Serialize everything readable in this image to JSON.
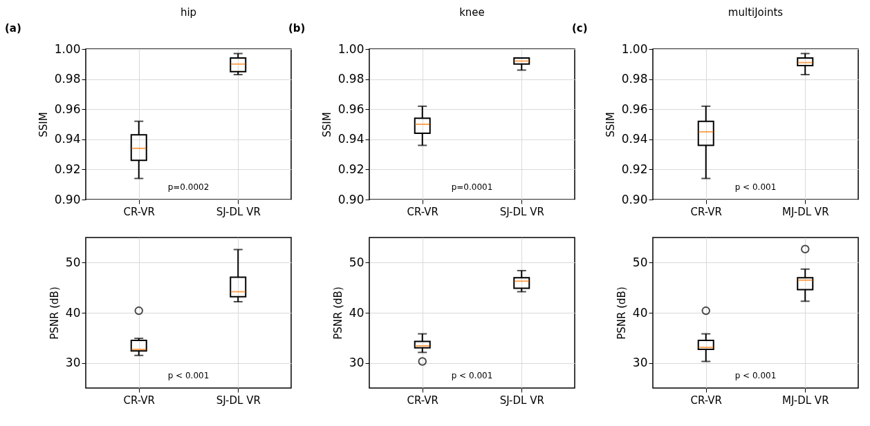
{
  "chart_data": [
    {
      "type": "box",
      "title": "hip",
      "ylabel": "SSIM",
      "categories": [
        "CR-VR",
        "SJ-DL VR"
      ],
      "ylim": [
        0.9,
        1.0
      ],
      "yticks": [
        {
          "value": 0.9,
          "label": "0.90"
        },
        {
          "value": 0.92,
          "label": "0.92"
        },
        {
          "value": 0.94,
          "label": "0.94"
        },
        {
          "value": 0.96,
          "label": "0.96"
        },
        {
          "value": 0.98,
          "label": "0.98"
        },
        {
          "value": 1.0,
          "label": "1.00"
        }
      ],
      "grid": true,
      "boxes": [
        {
          "low": 0.914,
          "q1": 0.926,
          "median": 0.934,
          "q3": 0.943,
          "high": 0.952
        },
        {
          "low": 0.983,
          "q1": 0.985,
          "median": 0.99,
          "q3": 0.994,
          "high": 0.997
        }
      ],
      "annotations": [
        "(a)",
        "p=0.0002"
      ]
    },
    {
      "type": "box",
      "title": "knee",
      "ylabel": "SSIM",
      "categories": [
        "CR-VR",
        "SJ-DL VR"
      ],
      "ylim": [
        0.9,
        1.0
      ],
      "yticks": [
        {
          "value": 0.9,
          "label": "0.90"
        },
        {
          "value": 0.92,
          "label": "0.92"
        },
        {
          "value": 0.94,
          "label": "0.94"
        },
        {
          "value": 0.96,
          "label": "0.96"
        },
        {
          "value": 0.98,
          "label": "0.98"
        },
        {
          "value": 1.0,
          "label": "1.00"
        }
      ],
      "grid": true,
      "boxes": [
        {
          "low": 0.936,
          "q1": 0.944,
          "median": 0.95,
          "q3": 0.954,
          "high": 0.962
        },
        {
          "low": 0.986,
          "q1": 0.99,
          "median": 0.992,
          "q3": 0.994,
          "high": 0.994
        }
      ],
      "annotations": [
        "(b)",
        "p=0.0001"
      ]
    },
    {
      "type": "box",
      "title": "multiJoints",
      "ylabel": "SSIM",
      "categories": [
        "CR-VR",
        "MJ-DL VR"
      ],
      "ylim": [
        0.9,
        1.0
      ],
      "yticks": [
        {
          "value": 0.9,
          "label": "0.90"
        },
        {
          "value": 0.92,
          "label": "0.92"
        },
        {
          "value": 0.94,
          "label": "0.94"
        },
        {
          "value": 0.96,
          "label": "0.96"
        },
        {
          "value": 0.98,
          "label": "0.98"
        },
        {
          "value": 1.0,
          "label": "1.00"
        }
      ],
      "grid": true,
      "boxes": [
        {
          "low": 0.914,
          "q1": 0.936,
          "median": 0.945,
          "q3": 0.952,
          "high": 0.962
        },
        {
          "low": 0.983,
          "q1": 0.989,
          "median": 0.991,
          "q3": 0.994,
          "high": 0.997
        }
      ],
      "annotations": [
        "(c)",
        "p < 0.001"
      ]
    },
    {
      "type": "box",
      "ylabel": "PSNR (dB)",
      "categories": [
        "CR-VR",
        "SJ-DL VR"
      ],
      "ylim": [
        25,
        55
      ],
      "yticks": [
        30,
        40,
        50
      ],
      "grid": true,
      "boxes": [
        {
          "low": 31.5,
          "q1": 32.4,
          "median": 32.7,
          "q3": 34.5,
          "high": 34.9,
          "outliers": [
            40.4
          ]
        },
        {
          "low": 42.2,
          "q1": 43.2,
          "median": 44.2,
          "q3": 47.1,
          "high": 52.6
        }
      ],
      "annotations": [
        "p < 0.001"
      ]
    },
    {
      "type": "box",
      "ylabel": "PSNR (dB)",
      "categories": [
        "CR-VR",
        "SJ-DL VR"
      ],
      "ylim": [
        25,
        55
      ],
      "yticks": [
        30,
        40,
        50
      ],
      "grid": true,
      "boxes": [
        {
          "low": 32.1,
          "q1": 33.0,
          "median": 33.4,
          "q3": 34.3,
          "high": 35.8,
          "outliers": [
            30.3
          ]
        },
        {
          "low": 44.2,
          "q1": 44.9,
          "median": 46.3,
          "q3": 47.0,
          "high": 48.4
        }
      ],
      "annotations": [
        "p < 0.001"
      ]
    },
    {
      "type": "box",
      "ylabel": "PSNR (dB)",
      "categories": [
        "CR-VR",
        "MJ-DL VR"
      ],
      "ylim": [
        25,
        55
      ],
      "yticks": [
        30,
        40,
        50
      ],
      "grid": true,
      "boxes": [
        {
          "low": 30.3,
          "q1": 32.7,
          "median": 33.1,
          "q3": 34.5,
          "high": 35.8,
          "outliers": [
            40.4
          ]
        },
        {
          "low": 42.3,
          "q1": 44.6,
          "median": 46.5,
          "q3": 47.0,
          "high": 48.7,
          "outliers": [
            52.7
          ]
        }
      ],
      "annotations": [
        "p < 0.001"
      ]
    }
  ]
}
